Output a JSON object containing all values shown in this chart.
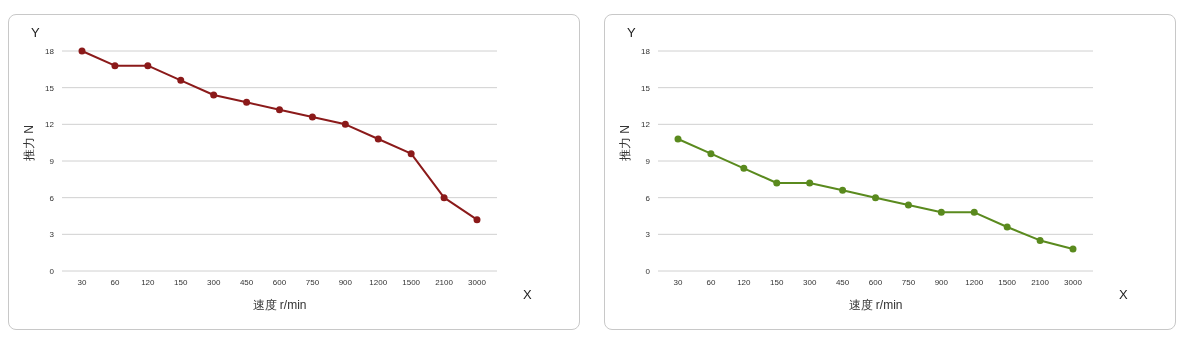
{
  "chart_data": [
    {
      "type": "line",
      "xlabel": "速度 r/min",
      "ylabel": "推力 N",
      "annotations": [
        "Y",
        "X"
      ],
      "categories": [
        "30",
        "60",
        "120",
        "150",
        "300",
        "450",
        "600",
        "750",
        "900",
        "1200",
        "1500",
        "2100",
        "3000"
      ],
      "series": [
        {
          "color": "#8b1a1a",
          "values": [
            18,
            16.8,
            16.8,
            15.6,
            14.4,
            13.8,
            13.2,
            12.6,
            12,
            10.8,
            9.6,
            6,
            4.2
          ]
        }
      ],
      "ylim": [
        0,
        18
      ],
      "yticks": [
        0,
        3,
        6,
        9,
        12,
        15,
        18
      ],
      "grid": "y",
      "legend": false,
      "marker": "circle",
      "line_style": "solid"
    },
    {
      "type": "line",
      "xlabel": "速度 r/min",
      "ylabel": "推力 N",
      "annotations": [
        "Y",
        "X"
      ],
      "categories": [
        "30",
        "60",
        "120",
        "150",
        "300",
        "450",
        "600",
        "750",
        "900",
        "1200",
        "1500",
        "2100",
        "3000"
      ],
      "series": [
        {
          "color": "#5a8a1e",
          "values": [
            10.8,
            9.6,
            8.4,
            7.2,
            7.2,
            6.6,
            6,
            5.4,
            4.8,
            4.8,
            3.6,
            2.5,
            1.8
          ]
        }
      ],
      "ylim": [
        0,
        18
      ],
      "yticks": [
        0,
        3,
        6,
        9,
        12,
        15,
        18
      ],
      "grid": "y",
      "legend": false,
      "marker": "circle",
      "line_style": "solid"
    }
  ]
}
